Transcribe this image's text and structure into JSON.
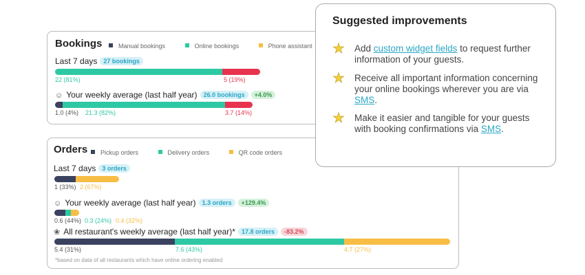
{
  "colors": {
    "manual": "#3a4260",
    "online": "#2ec9a4",
    "phone": "#f7bd45",
    "red": "#e8334f",
    "pickup": "#3a4260",
    "delivery": "#2ec9a4",
    "qr": "#f7bd45"
  },
  "bookings": {
    "title": "Bookings",
    "legend": [
      "Manual bookings",
      "Online bookings",
      "Phone assistant"
    ],
    "last7": {
      "label": "Last 7 days",
      "badge": "27 bookings",
      "segments": [
        {
          "value": 22,
          "pct": 81,
          "label": "22 (81%)",
          "color": "online"
        },
        {
          "value": 5,
          "pct": 19,
          "label": "5 (19%)",
          "color": "red"
        }
      ]
    },
    "weekly": {
      "label": "Your weekly average (last half year)",
      "badge": "26.0 bookings",
      "change": "+4.0%",
      "segments": [
        {
          "pct": 4,
          "label": "1.0 (4%)",
          "color": "manual"
        },
        {
          "pct": 82,
          "label": "21.3 (82%)",
          "color": "online"
        },
        {
          "pct": 14,
          "label": "3.7 (14%)",
          "color": "red"
        }
      ]
    }
  },
  "orders": {
    "title": "Orders",
    "legend": [
      "Pickup orders",
      "Delivery orders",
      "QR code orders"
    ],
    "last7": {
      "label": "Last 7 days",
      "badge": "3 orders",
      "segments": [
        {
          "pct": 33,
          "label": "1 (33%)"
        },
        {
          "pct": 67,
          "label": "2 (67%)"
        }
      ]
    },
    "weekly": {
      "label": "Your weekly average (last half year)",
      "badge": "1.3 orders",
      "change": "+129.4%",
      "segments": [
        {
          "pct": 44,
          "label": "0.6 (44%)"
        },
        {
          "pct": 24,
          "label": "0.3 (24%)"
        },
        {
          "pct": 32,
          "label": "0.4 (32%)"
        }
      ]
    },
    "all": {
      "label": "All restaurant's weekly average (last half year)*",
      "badge": "17.8 orders",
      "change": "-83.2%",
      "segments": [
        {
          "pct": 31,
          "label": "5.4 (31%)"
        },
        {
          "pct": 43,
          "label": "7.6 (43%)"
        },
        {
          "pct": 27,
          "label": "4.7 (27%)"
        }
      ]
    },
    "footnote": "*based on data of all restaurants which have online ordering enabled"
  },
  "suggestions": {
    "title": "Suggested improvements",
    "items": [
      {
        "pre": "Add ",
        "link": "custom widget fields",
        "post": " to request further information of your guests."
      },
      {
        "pre": "Receive all important information concerning your online bookings wherever you are via ",
        "link": "SMS",
        "post": "."
      },
      {
        "pre": "Make it easier and tangible for your guests with booking confirmations via ",
        "link": "SMS",
        "post": "."
      }
    ]
  }
}
